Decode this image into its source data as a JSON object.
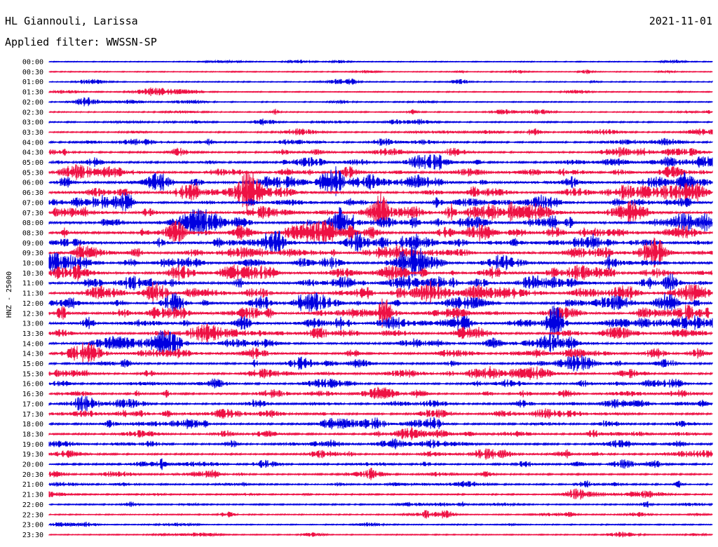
{
  "header": {
    "station": "HL Giannouli, Larissa",
    "date": "2021-11-01",
    "filter_label": "Applied filter: WWSSN-SP"
  },
  "chart_data": {
    "type": "line",
    "title": "HL Giannouli, Larissa",
    "ylabel": "HNZ - 25000",
    "colors": {
      "blue": "#0000e0",
      "red": "#ee1144"
    },
    "rows": [
      "00:00",
      "00:30",
      "01:00",
      "01:30",
      "02:00",
      "02:30",
      "03:00",
      "03:30",
      "04:00",
      "04:30",
      "05:00",
      "05:30",
      "06:00",
      "06:30",
      "07:00",
      "07:30",
      "08:00",
      "08:30",
      "09:00",
      "09:30",
      "10:00",
      "10:30",
      "11:00",
      "11:30",
      "12:00",
      "12:30",
      "13:00",
      "13:30",
      "14:00",
      "14:30",
      "15:00",
      "15:30",
      "16:00",
      "16:30",
      "17:00",
      "17:30",
      "18:00",
      "18:30",
      "19:00",
      "19:30",
      "20:00",
      "20:30",
      "21:00",
      "21:30",
      "22:00",
      "22:30",
      "23:00",
      "23:30"
    ],
    "activity": [
      0.05,
      0.08,
      0.1,
      0.12,
      0.14,
      0.16,
      0.2,
      0.25,
      0.32,
      0.4,
      0.5,
      0.62,
      0.75,
      0.78,
      0.7,
      0.74,
      0.78,
      0.8,
      0.76,
      0.72,
      0.7,
      0.8,
      0.78,
      0.8,
      0.72,
      0.74,
      0.7,
      0.65,
      0.6,
      0.52,
      0.5,
      0.48,
      0.46,
      0.44,
      0.46,
      0.44,
      0.44,
      0.42,
      0.42,
      0.4,
      0.38,
      0.32,
      0.3,
      0.26,
      0.22,
      0.18,
      0.14,
      0.12
    ]
  }
}
